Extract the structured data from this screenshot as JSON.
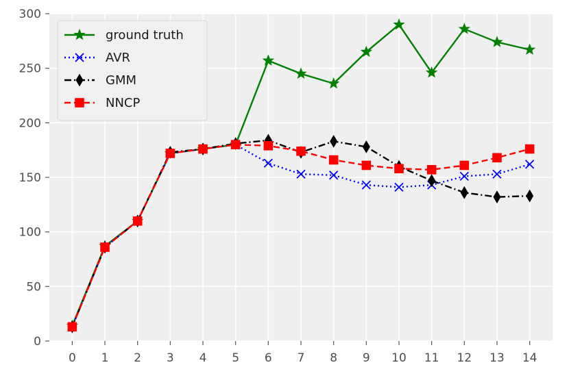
{
  "chart_data": {
    "type": "line",
    "title": "",
    "xlabel": "",
    "ylabel": "",
    "x": [
      0,
      1,
      2,
      3,
      4,
      5,
      6,
      7,
      8,
      9,
      10,
      11,
      12,
      13,
      14
    ],
    "xlim": [
      -0.7,
      14.7
    ],
    "ylim": [
      0,
      300
    ],
    "xticks": [
      0,
      1,
      2,
      3,
      4,
      5,
      6,
      7,
      8,
      9,
      10,
      11,
      12,
      13,
      14
    ],
    "yticks": [
      0,
      50,
      100,
      150,
      200,
      250,
      300
    ],
    "grid": true,
    "legend_position": "upper-left",
    "background_color": "#efefef",
    "series": [
      {
        "name": "ground truth",
        "color": "#008000",
        "linestyle": "solid",
        "marker": "star",
        "values": [
          14,
          87,
          110,
          172,
          176,
          180,
          257,
          245,
          236,
          265,
          290,
          246,
          286,
          274,
          267
        ]
      },
      {
        "name": "AVR",
        "color": "#0000ff",
        "linestyle": "dotted",
        "marker": "x",
        "values": [
          13,
          86,
          110,
          172,
          176,
          180,
          163,
          153,
          152,
          143,
          141,
          143,
          151,
          153,
          162
        ]
      },
      {
        "name": "GMM",
        "color": "#000000",
        "linestyle": "dashdot",
        "marker": "thin-diamond",
        "values": [
          13,
          86,
          110,
          173,
          176,
          181,
          184,
          173,
          183,
          178,
          160,
          147,
          136,
          132,
          133
        ]
      },
      {
        "name": "NNCP",
        "color": "#ff0000",
        "linestyle": "dashed",
        "marker": "square",
        "values": [
          13,
          86,
          110,
          172,
          176,
          180,
          179,
          174,
          166,
          161,
          158,
          157,
          161,
          168,
          176
        ]
      }
    ]
  }
}
